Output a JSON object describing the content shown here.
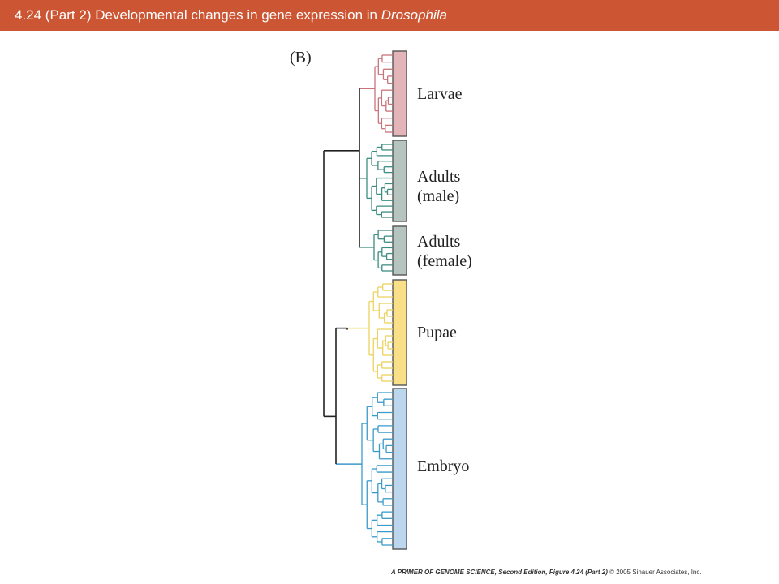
{
  "title": {
    "prefix": "4.24 (Part 2)  Developmental changes in gene expression in ",
    "italic": "Drosophila"
  },
  "panel_label": "(B)",
  "groups": [
    {
      "key": "larvae",
      "line1": "Larvae",
      "line2": "",
      "bar_color": "#e3b5b8",
      "tree_color": "#c9737a"
    },
    {
      "key": "adults_male",
      "line1": "Adults",
      "line2": "(male)",
      "bar_color": "#b6c4c0",
      "tree_color": "#3c8c80"
    },
    {
      "key": "adults_female",
      "line1": "Adults",
      "line2": "(female)",
      "bar_color": "#b6c4c0",
      "tree_color": "#3c8c80"
    },
    {
      "key": "pupae",
      "line1": "Pupae",
      "line2": "",
      "bar_color": "#f8df88",
      "tree_color": "#ecd25e"
    },
    {
      "key": "embryo",
      "line1": "Embryo",
      "line2": "",
      "bar_color": "#bcd6ee",
      "tree_color": "#3a9ac9"
    }
  ],
  "colors": {
    "header_bg": "#cc5533",
    "header_text": "#ffffff",
    "root_branches": "#222222"
  },
  "footer": {
    "bold_text": "A PRIMER OF GENOME SCIENCE, Second Edition, Figure 4.24 (Part 2)",
    "rest_text": "  © 2005 Sinauer Associates, Inc."
  }
}
